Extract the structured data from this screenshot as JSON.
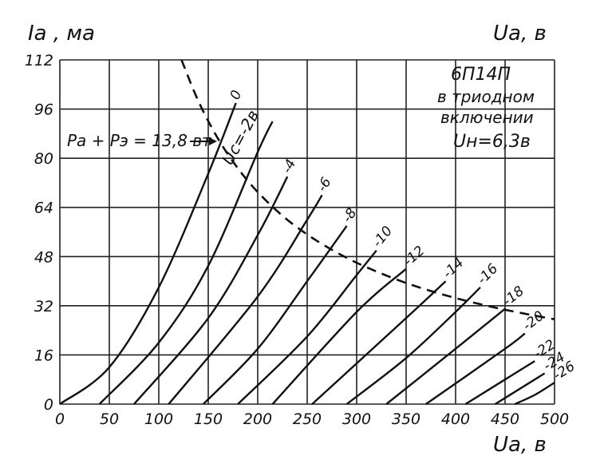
{
  "chart_data": {
    "type": "line",
    "title": "6П14П",
    "subtitle_lines": [
      "в триодном",
      "включении",
      "Uн=6,3в"
    ],
    "ylabel": "Iа , ма",
    "xlabel": "Uа, в",
    "top_right_label": "Uа, в",
    "xlim": [
      0,
      500
    ],
    "ylim": [
      0,
      112
    ],
    "x_ticks": [
      0,
      50,
      100,
      150,
      200,
      250,
      300,
      350,
      400,
      450,
      500
    ],
    "y_ticks": [
      0,
      16,
      32,
      48,
      64,
      80,
      96,
      112
    ],
    "x_tick_labels": [
      "0",
      "50",
      "100",
      "150",
      "200",
      "250",
      "300",
      "350",
      "400",
      "450",
      "500"
    ],
    "y_tick_labels": [
      "0",
      "16",
      "32",
      "48",
      "64",
      "80",
      "96",
      "112"
    ],
    "grid": true,
    "grid_label": "Uc=-2в",
    "annotation": "Pа + Pэ = 13,8 вт",
    "series": [
      {
        "name": "0",
        "label": "0",
        "points": [
          [
            0,
            0
          ],
          [
            50,
            12
          ],
          [
            100,
            38
          ],
          [
            150,
            75
          ],
          [
            178,
            98
          ]
        ]
      },
      {
        "name": "-2",
        "label": "-2в",
        "points": [
          [
            40,
            0
          ],
          [
            100,
            20
          ],
          [
            150,
            45
          ],
          [
            200,
            82
          ],
          [
            215,
            92
          ]
        ]
      },
      {
        "name": "-4",
        "label": "-4",
        "points": [
          [
            75,
            0
          ],
          [
            150,
            28
          ],
          [
            200,
            55
          ],
          [
            230,
            74
          ]
        ]
      },
      {
        "name": "-6",
        "label": "-6",
        "points": [
          [
            110,
            0
          ],
          [
            200,
            35
          ],
          [
            250,
            60
          ],
          [
            265,
            68
          ]
        ]
      },
      {
        "name": "-8",
        "label": "-8",
        "points": [
          [
            145,
            0
          ],
          [
            200,
            18
          ],
          [
            250,
            40
          ],
          [
            290,
            58
          ]
        ]
      },
      {
        "name": "-10",
        "label": "-10",
        "points": [
          [
            180,
            0
          ],
          [
            250,
            22
          ],
          [
            300,
            42
          ],
          [
            320,
            50
          ]
        ]
      },
      {
        "name": "-12",
        "label": "-12",
        "points": [
          [
            215,
            0
          ],
          [
            300,
            30
          ],
          [
            350,
            44
          ]
        ]
      },
      {
        "name": "-14",
        "label": "-14",
        "points": [
          [
            255,
            0
          ],
          [
            350,
            28
          ],
          [
            390,
            40
          ]
        ]
      },
      {
        "name": "-16",
        "label": "-16",
        "points": [
          [
            290,
            0
          ],
          [
            350,
            15
          ],
          [
            400,
            30
          ],
          [
            425,
            38
          ]
        ]
      },
      {
        "name": "-18",
        "label": "-18",
        "points": [
          [
            330,
            0
          ],
          [
            400,
            18
          ],
          [
            450,
            31
          ]
        ]
      },
      {
        "name": "-20",
        "label": "-20",
        "points": [
          [
            370,
            0
          ],
          [
            450,
            18
          ],
          [
            470,
            23
          ]
        ]
      },
      {
        "name": "-22",
        "label": "-22",
        "points": [
          [
            410,
            0
          ],
          [
            450,
            8
          ],
          [
            480,
            14
          ]
        ]
      },
      {
        "name": "-24",
        "label": "-24",
        "points": [
          [
            440,
            0
          ],
          [
            470,
            6
          ],
          [
            490,
            10
          ]
        ]
      },
      {
        "name": "-26",
        "label": "-26",
        "points": [
          [
            460,
            0
          ],
          [
            480,
            3
          ],
          [
            500,
            7
          ]
        ]
      }
    ],
    "power_limit_curve": {
      "label": "Pа + Pэ = 13,8 вт",
      "style": "dashed",
      "points": [
        [
          123,
          112
        ],
        [
          140,
          98.6
        ],
        [
          160,
          86.3
        ],
        [
          180,
          76.7
        ],
        [
          200,
          69
        ],
        [
          225,
          61.3
        ],
        [
          250,
          55.2
        ],
        [
          275,
          50.2
        ],
        [
          300,
          46
        ],
        [
          325,
          42.5
        ],
        [
          350,
          39.4
        ],
        [
          375,
          36.8
        ],
        [
          400,
          34.5
        ],
        [
          425,
          32.5
        ],
        [
          450,
          30.7
        ],
        [
          475,
          29.1
        ],
        [
          500,
          27.6
        ]
      ]
    }
  }
}
